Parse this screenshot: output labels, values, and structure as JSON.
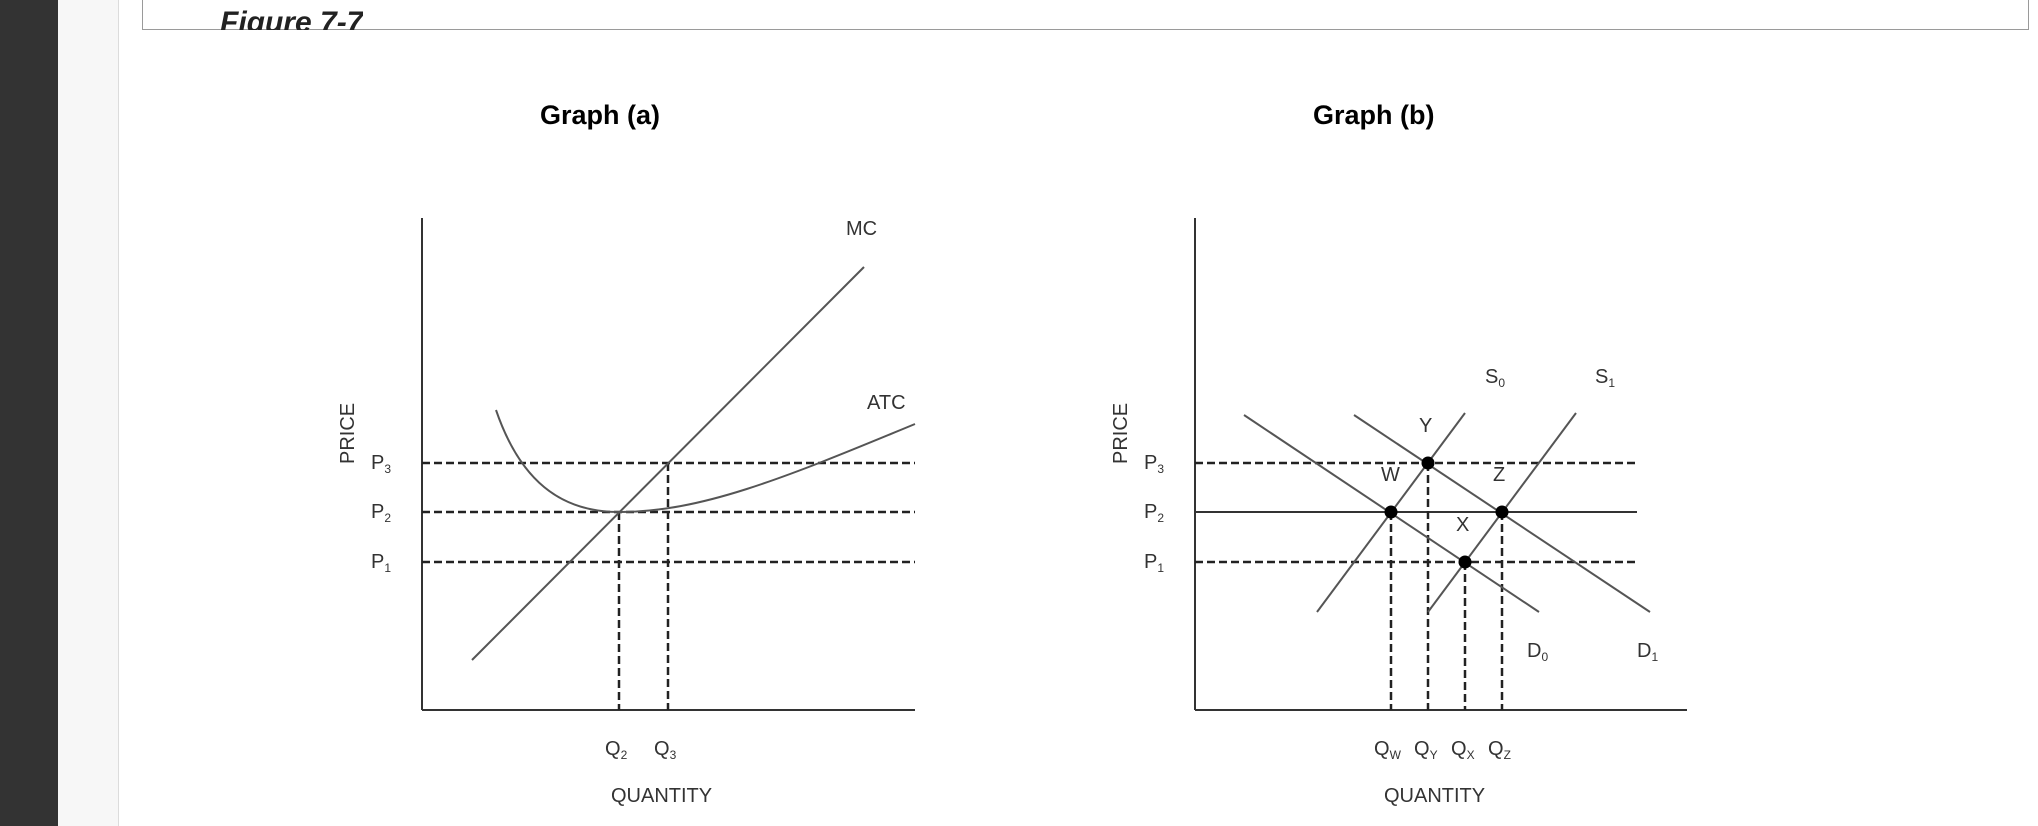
{
  "figure": {
    "caption": "Figure 7-7"
  },
  "graph_a": {
    "title": "Graph (a)",
    "y_axis_label": "PRICE",
    "x_axis_label": "QUANTITY",
    "curves": [
      "MC",
      "ATC"
    ],
    "price_levels": [
      {
        "name": "P",
        "sub": "3"
      },
      {
        "name": "P",
        "sub": "2"
      },
      {
        "name": "P",
        "sub": "1"
      }
    ],
    "quantity_levels": [
      {
        "name": "Q",
        "sub": "2"
      },
      {
        "name": "Q",
        "sub": "3"
      }
    ]
  },
  "graph_b": {
    "title": "Graph (b)",
    "y_axis_label": "PRICE",
    "x_axis_label": "QUANTITY",
    "supply": [
      {
        "name": "S",
        "sub": "0"
      },
      {
        "name": "S",
        "sub": "1"
      }
    ],
    "demand": [
      {
        "name": "D",
        "sub": "0"
      },
      {
        "name": "D",
        "sub": "1"
      }
    ],
    "points": [
      "Y",
      "W",
      "Z",
      "X"
    ],
    "price_levels": [
      {
        "name": "P",
        "sub": "3"
      },
      {
        "name": "P",
        "sub": "2"
      },
      {
        "name": "P",
        "sub": "1"
      }
    ],
    "quantity_levels": [
      {
        "name": "Q",
        "sub": "W"
      },
      {
        "name": "Q",
        "sub": "Y"
      },
      {
        "name": "Q",
        "sub": "X"
      },
      {
        "name": "Q",
        "sub": "Z"
      }
    ]
  }
}
